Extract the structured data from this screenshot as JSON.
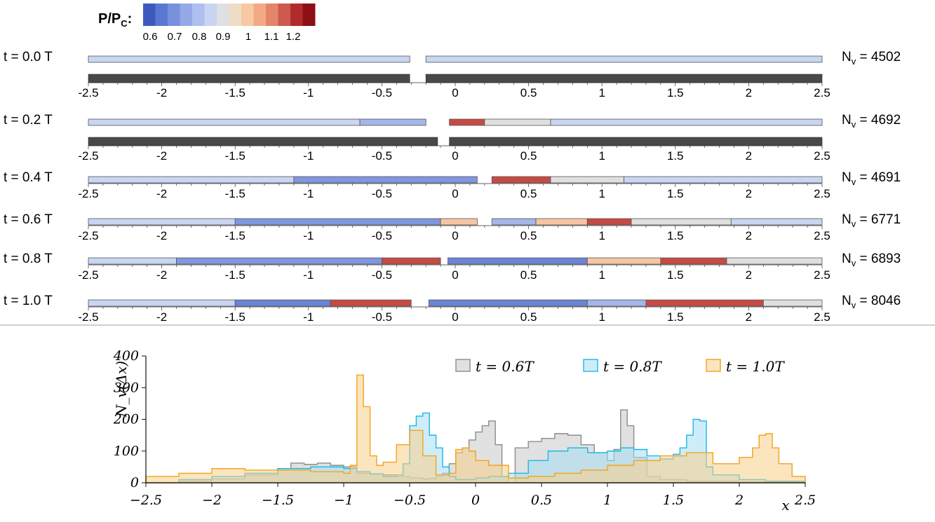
{
  "legend": {
    "label_main": "P/P",
    "label_sub": "C",
    "label_colon": ":",
    "colors": [
      "#3d5bbf",
      "#5a78d0",
      "#7891dd",
      "#94a9e6",
      "#aebfef",
      "#c8d4f2",
      "#dfe0e4",
      "#efdcc6",
      "#f7c8a4",
      "#f3a984",
      "#e3856a",
      "#cc5a4e",
      "#b02c2c",
      "#8e0f16"
    ],
    "tick_labels": [
      "0.6",
      "0.7",
      "0.8",
      "0.9",
      "1",
      "1.1",
      "1.2"
    ]
  },
  "strips": {
    "xticks": [
      "-2.5",
      "-2",
      "-1.5",
      "-1",
      "-0.5",
      "0",
      "0.5",
      "1",
      "1.5",
      "2",
      "2.5"
    ],
    "rows": [
      {
        "time_label": "t = 0.0 T",
        "nv_main": "N",
        "nv_sub": "v",
        "nv_value": " = 4502"
      },
      {
        "time_label": "t = 0.2 T",
        "nv_main": "N",
        "nv_sub": "v",
        "nv_value": " = 4692"
      },
      {
        "time_label": "t = 0.4 T",
        "nv_main": "N",
        "nv_sub": "v",
        "nv_value": " = 4691"
      },
      {
        "time_label": "t = 0.6 T",
        "nv_main": "N",
        "nv_sub": "v",
        "nv_value": " = 6771"
      },
      {
        "time_label": "t = 0.8 T",
        "nv_main": "N",
        "nv_sub": "v",
        "nv_value": " = 6893"
      },
      {
        "time_label": "t = 1.0 T",
        "nv_main": "N",
        "nv_sub": "v",
        "nv_value": " = 8046"
      }
    ]
  },
  "chart_data": {
    "type": "area",
    "title": "",
    "ylabel": "N_v(Δx)",
    "xlabel": "x",
    "xlim": [
      -2.5,
      2.5
    ],
    "ylim": [
      0,
      400
    ],
    "xticks": [
      "−2.5",
      "−2",
      "−1.5",
      "−1",
      "−0.5",
      "0",
      "0.5",
      "1",
      "1.5",
      "2",
      "2.5"
    ],
    "yticks": [
      "0",
      "100",
      "200",
      "300",
      "400"
    ],
    "legend_position": "top-right",
    "series": [
      {
        "name": "t = 0.6T",
        "color": "#8c8c8c",
        "fill": "#c8c8c8",
        "x": [
          -2.5,
          -2.25,
          -2.0,
          -1.75,
          -1.5,
          -1.4,
          -1.3,
          -1.2,
          -1.1,
          -1.0,
          -0.9,
          -0.8,
          -0.7,
          -0.6,
          -0.5,
          -0.4,
          -0.35,
          -0.3,
          -0.25,
          -0.2,
          -0.15,
          -0.1,
          -0.05,
          0.0,
          0.05,
          0.1,
          0.15,
          0.2,
          0.25,
          0.3,
          0.4,
          0.5,
          0.6,
          0.7,
          0.8,
          0.9,
          1.0,
          1.05,
          1.1,
          1.15,
          1.2,
          1.3,
          1.4,
          1.6,
          1.8,
          2.0,
          2.2,
          2.5
        ],
        "y": [
          0,
          5,
          12,
          25,
          45,
          62,
          58,
          62,
          55,
          50,
          30,
          28,
          25,
          20,
          15,
          12,
          14,
          20,
          30,
          60,
          95,
          110,
          135,
          160,
          180,
          195,
          120,
          20,
          0,
          110,
          130,
          140,
          155,
          150,
          120,
          95,
          70,
          105,
          230,
          180,
          80,
          20,
          10,
          5,
          5,
          3,
          2,
          0
        ]
      },
      {
        "name": "t = 0.8T",
        "color": "#1ab8e6",
        "fill": "#a8dff3",
        "x": [
          -2.5,
          -2.25,
          -2.0,
          -1.75,
          -1.5,
          -1.25,
          -1.0,
          -0.9,
          -0.8,
          -0.7,
          -0.6,
          -0.55,
          -0.5,
          -0.45,
          -0.4,
          -0.35,
          -0.3,
          -0.25,
          -0.2,
          -0.15,
          -0.1,
          0.0,
          0.1,
          0.25,
          0.4,
          0.55,
          0.7,
          0.85,
          1.0,
          1.1,
          1.2,
          1.3,
          1.4,
          1.5,
          1.55,
          1.6,
          1.65,
          1.7,
          1.75,
          1.8,
          2.0,
          2.2,
          2.5
        ],
        "y": [
          0,
          10,
          20,
          30,
          45,
          50,
          45,
          35,
          28,
          20,
          25,
          60,
          180,
          210,
          220,
          150,
          110,
          50,
          20,
          10,
          10,
          15,
          20,
          30,
          70,
          100,
          110,
          95,
          100,
          110,
          105,
          85,
          75,
          90,
          110,
          150,
          200,
          195,
          50,
          25,
          10,
          5,
          0
        ]
      },
      {
        "name": "t = 1.0T",
        "color": "#f2a31b",
        "fill": "#f8d08a",
        "x": [
          -2.5,
          -2.25,
          -2.0,
          -1.75,
          -1.5,
          -1.25,
          -1.0,
          -0.95,
          -0.9,
          -0.85,
          -0.8,
          -0.75,
          -0.7,
          -0.6,
          -0.5,
          -0.4,
          -0.3,
          -0.2,
          -0.15,
          -0.1,
          -0.05,
          0.0,
          0.1,
          0.25,
          0.4,
          0.6,
          0.8,
          1.0,
          1.2,
          1.4,
          1.6,
          1.8,
          2.0,
          2.1,
          2.15,
          2.2,
          2.25,
          2.3,
          2.4,
          2.5
        ],
        "y": [
          20,
          30,
          45,
          40,
          40,
          35,
          30,
          55,
          340,
          240,
          85,
          55,
          65,
          120,
          165,
          85,
          25,
          30,
          105,
          110,
          100,
          70,
          55,
          15,
          20,
          30,
          40,
          55,
          70,
          85,
          95,
          60,
          80,
          110,
          150,
          155,
          110,
          60,
          20,
          0
        ]
      }
    ]
  }
}
